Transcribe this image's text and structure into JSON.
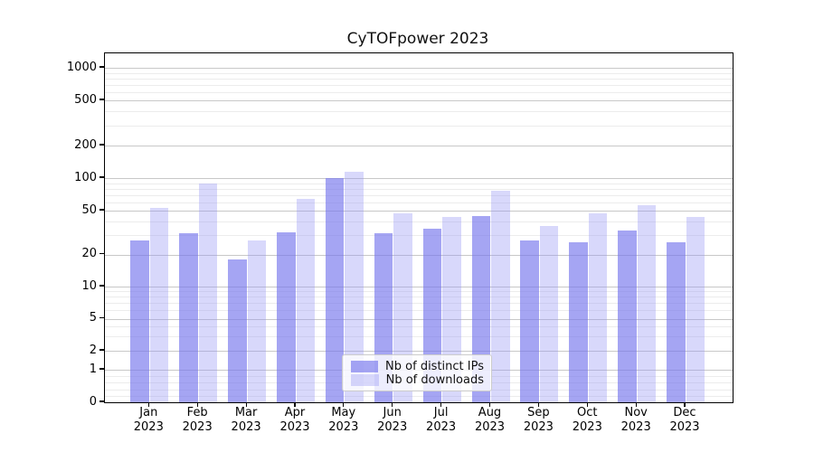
{
  "title": "CyTOFpower 2023",
  "chart_data": {
    "type": "bar",
    "title": "CyTOFpower 2023",
    "categories": [
      "Jan 2023",
      "Feb 2023",
      "Mar 2023",
      "Apr 2023",
      "May 2023",
      "Jun 2023",
      "Jul 2023",
      "Aug 2023",
      "Sep 2023",
      "Oct 2023",
      "Nov 2023",
      "Dec 2023"
    ],
    "months": [
      "Jan",
      "Feb",
      "Mar",
      "Apr",
      "May",
      "Jun",
      "Jul",
      "Aug",
      "Sep",
      "Oct",
      "Nov",
      "Dec"
    ],
    "year": "2023",
    "series": [
      {
        "name": "Nb of distinct IPs",
        "color": "#7474ed",
        "alpha": 0.65,
        "values": [
          27,
          31,
          18,
          32,
          100,
          31,
          34,
          45,
          27,
          26,
          33,
          26
        ]
      },
      {
        "name": "Nb of downloads",
        "color": "#9696f4",
        "alpha": 0.37,
        "values": [
          53,
          90,
          27,
          64,
          115,
          47,
          44,
          76,
          36,
          47,
          56,
          44
        ]
      }
    ],
    "yticks": [
      0,
      1,
      2,
      5,
      10,
      20,
      50,
      100,
      200,
      500,
      1000
    ],
    "yscale": "symlog",
    "ylim": [
      0,
      1350
    ],
    "grid": "horizontal major and minor",
    "legend_position": "lower center"
  }
}
